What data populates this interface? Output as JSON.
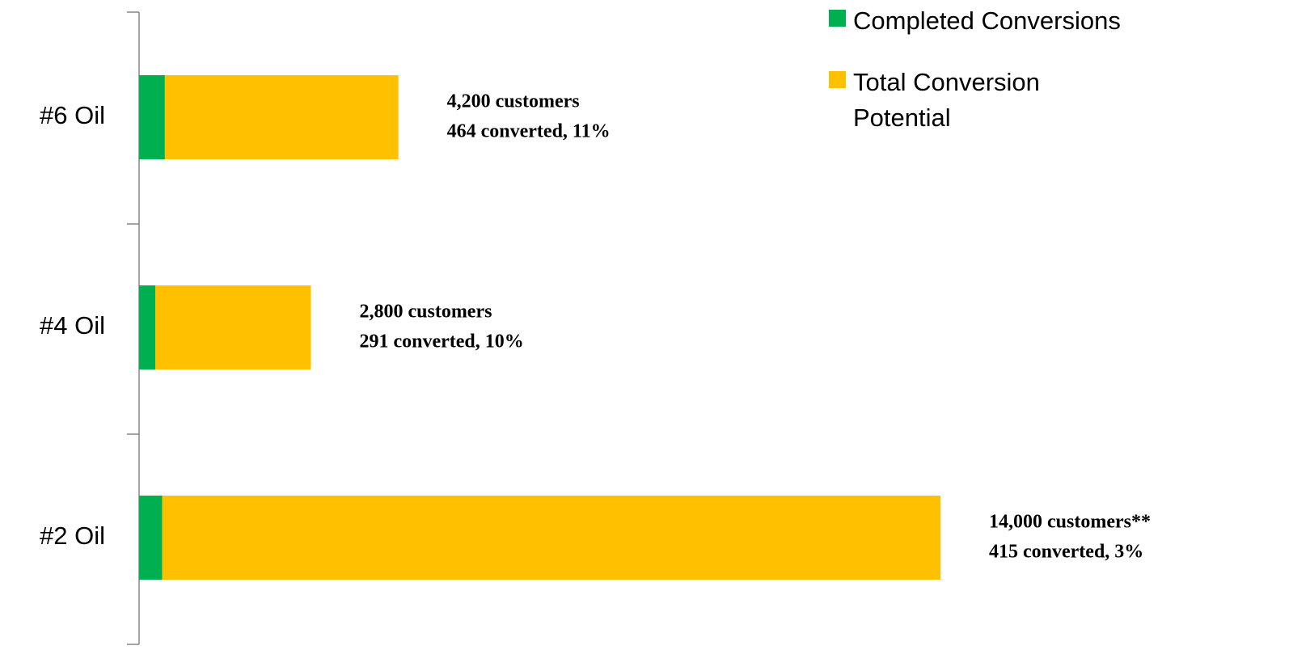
{
  "chart_data": {
    "type": "stacked-bar-horizontal",
    "categories": [
      "#6 Oil",
      "#4 Oil",
      "#2 Oil"
    ],
    "series": [
      {
        "name": "Completed Conversions",
        "color": "#00b050",
        "values": [
          464,
          291,
          415
        ],
        "value_labels": [
          "464 converted, 11%",
          "291 converted, 10%",
          "415 converted, 3%"
        ]
      },
      {
        "name": "Total Conversion Potential",
        "color": "#ffc000",
        "values": [
          4200,
          2800,
          14000
        ],
        "value_labels": [
          "4,200 customers",
          "2,800 customers",
          "14,000 customers**"
        ]
      }
    ],
    "legend": "top-right"
  }
}
